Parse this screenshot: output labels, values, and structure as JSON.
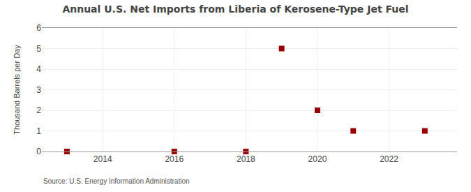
{
  "chart_data": {
    "type": "scatter",
    "title": "Annual U.S. Net Imports from Liberia of Kerosene-Type Jet Fuel",
    "ylabel": "Thousand Barrels per Day",
    "annotations": [
      "Source: U.S. Energy Information Administration"
    ],
    "x": [
      2013,
      2016,
      2018,
      2019,
      2020,
      2021,
      2023
    ],
    "values": [
      0,
      0,
      0,
      5,
      2,
      1,
      1
    ],
    "color": "#990000",
    "marker": "square",
    "xlim": [
      2012.3,
      2023.9
    ],
    "ylim": [
      0,
      6
    ],
    "xticks": [
      2014,
      2016,
      2018,
      2020,
      2022
    ],
    "yticks": [
      0,
      1,
      2,
      3,
      4,
      5,
      6
    ],
    "grid": true
  }
}
